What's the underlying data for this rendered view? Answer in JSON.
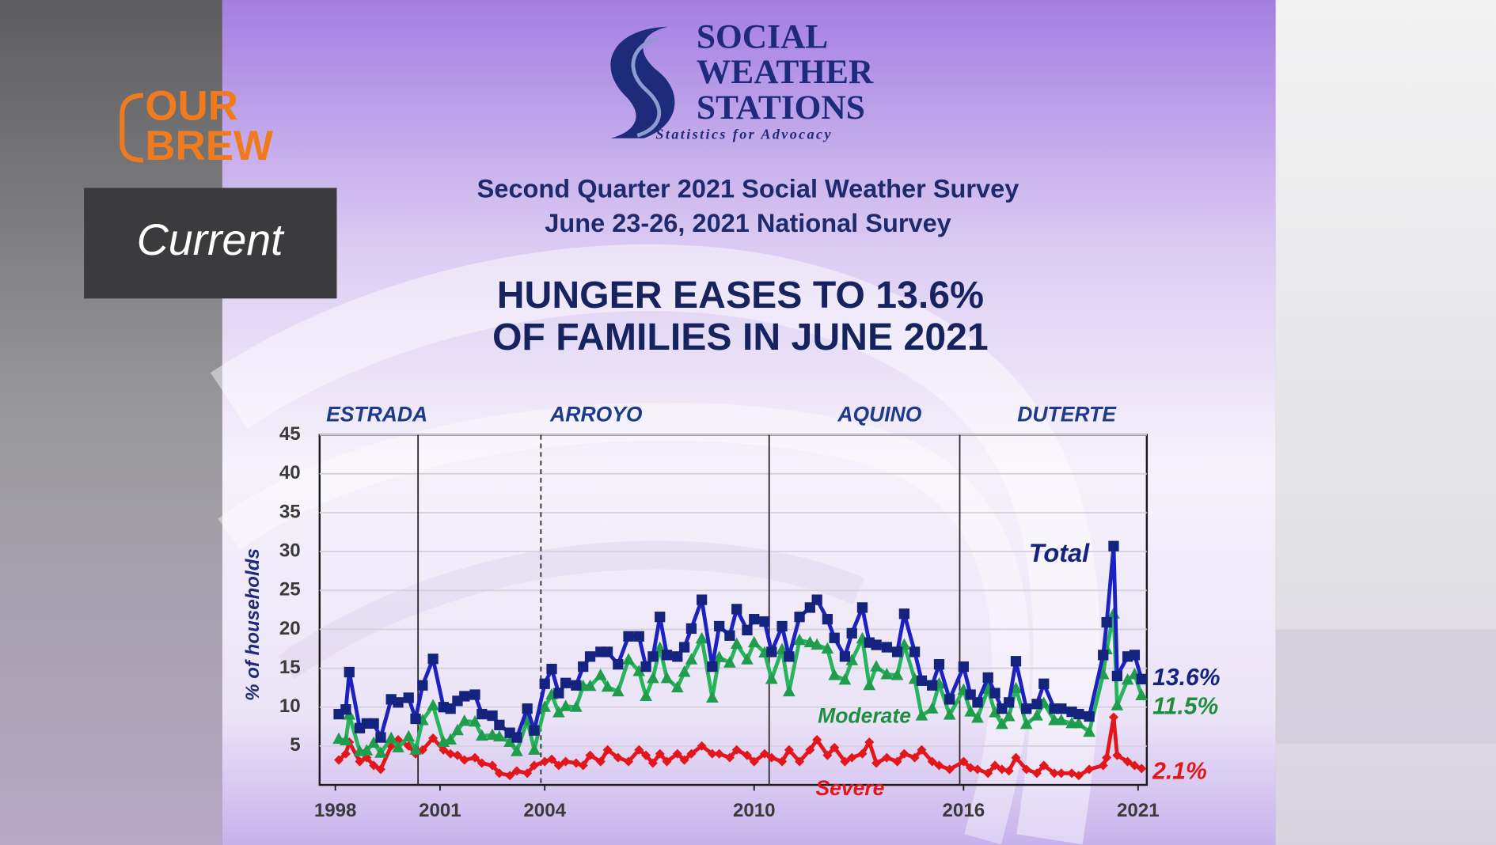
{
  "overlay": {
    "brand": [
      "OUR",
      "BREW"
    ],
    "tag": "Current"
  },
  "logo": {
    "name": [
      "SOCIAL",
      "WEATHER",
      "STATIONS"
    ],
    "tagline": "Statistics for Advocacy"
  },
  "chart_data": {
    "type": "line",
    "subtitle": [
      "Second Quarter 2021 Social Weather Survey",
      "June 23-26, 2021 National Survey"
    ],
    "title": [
      "HUNGER EASES TO 13.6%",
      "OF FAMILIES IN JUNE 2021"
    ],
    "y_label": "% of households",
    "xlim": [
      1997.55,
      2021.25
    ],
    "xticks": [
      1998,
      2001,
      2004,
      2010,
      2016,
      2021
    ],
    "ylim": [
      0,
      45
    ],
    "yticks": [
      5,
      10,
      15,
      20,
      25,
      30,
      35,
      40,
      45
    ],
    "grid": true,
    "eras": [
      "ESTRADA",
      "ARROYO",
      "AQUINO",
      "DUTERTE"
    ],
    "era_lines": [
      {
        "x": 2000.37,
        "dashed": false
      },
      {
        "x": 2003.89,
        "dashed": true
      },
      {
        "x": 2010.43,
        "dashed": false
      },
      {
        "x": 2015.89,
        "dashed": false
      }
    ],
    "x": [
      1998.1,
      1998.3,
      1998.4,
      1998.7,
      1998.9,
      1999.1,
      1999.3,
      1999.6,
      1999.8,
      2000.1,
      2000.3,
      2000.5,
      2000.8,
      2001.1,
      2001.3,
      2001.5,
      2001.7,
      2002.0,
      2002.2,
      2002.5,
      2002.7,
      2003.0,
      2003.2,
      2003.5,
      2003.7,
      2004.0,
      2004.2,
      2004.4,
      2004.6,
      2004.9,
      2005.1,
      2005.3,
      2005.6,
      2005.8,
      2006.1,
      2006.4,
      2006.7,
      2006.9,
      2007.1,
      2007.3,
      2007.5,
      2007.8,
      2008.0,
      2008.2,
      2008.5,
      2008.8,
      2009.0,
      2009.3,
      2009.5,
      2009.8,
      2010.0,
      2010.3,
      2010.5,
      2010.8,
      2011.0,
      2011.3,
      2011.6,
      2011.8,
      2012.1,
      2012.3,
      2012.6,
      2012.8,
      2013.1,
      2013.3,
      2013.5,
      2013.8,
      2014.1,
      2014.3,
      2014.6,
      2014.8,
      2015.1,
      2015.3,
      2015.6,
      2016.0,
      2016.2,
      2016.4,
      2016.7,
      2016.9,
      2017.1,
      2017.3,
      2017.5,
      2017.8,
      2018.1,
      2018.3,
      2018.6,
      2018.8,
      2019.1,
      2019.3,
      2019.6,
      2020.0,
      2020.1,
      2020.3,
      2020.4,
      2020.7,
      2020.9,
      2021.1
    ],
    "series": [
      {
        "name": "Total",
        "color": "#1c22c0",
        "marker": "square",
        "marker_color": "#14237e",
        "values": [
          9.1,
          9.7,
          14.5,
          7.3,
          7.9,
          7.9,
          6.1,
          11,
          10.6,
          11.2,
          8.5,
          12.8,
          16.2,
          10,
          9.8,
          10.8,
          11.4,
          11.6,
          9.1,
          8.9,
          7.7,
          6.7,
          6.1,
          9.8,
          7,
          13,
          14.9,
          11.8,
          13.1,
          12.8,
          15.2,
          16.5,
          17.1,
          17.1,
          15.5,
          19.1,
          19.1,
          15.2,
          16.5,
          21.6,
          16.7,
          16.5,
          17.7,
          20.1,
          23.8,
          15.2,
          20.4,
          19.2,
          22.6,
          19.9,
          21.3,
          21,
          17.1,
          20.4,
          16.5,
          21.6,
          22.8,
          23.8,
          21.3,
          18.9,
          16.5,
          19.5,
          22.8,
          18.3,
          18,
          17.7,
          17.1,
          22,
          17.1,
          13.4,
          12.8,
          15.5,
          11,
          15.2,
          11.6,
          10.6,
          13.8,
          11.8,
          9.8,
          10.6,
          15.9,
          9.8,
          10.4,
          13,
          9.8,
          9.8,
          9.4,
          9.1,
          8.8,
          16.7,
          20.9,
          30.7,
          14,
          16.5,
          16.7,
          13.6
        ],
        "value_labels": {
          "95": "13.6%"
        }
      },
      {
        "name": "Moderate",
        "color": "#27b45c",
        "marker": "triangle",
        "marker_color": "#1f9d4c",
        "values": [
          5.9,
          5.7,
          9,
          4.3,
          4.4,
          5.4,
          4.1,
          6,
          4.8,
          6.2,
          4.5,
          8.3,
          10.2,
          5.5,
          5.8,
          7,
          8.2,
          8.1,
          6.3,
          6.4,
          6.2,
          5.5,
          4.3,
          8.3,
          4.5,
          10,
          11.6,
          9.3,
          10.1,
          10,
          12.7,
          12.7,
          14.1,
          12.6,
          12,
          16.1,
          14.6,
          11.4,
          13.7,
          17.6,
          13.7,
          12.5,
          14.5,
          16.1,
          18.8,
          11.2,
          16.4,
          15.7,
          18.1,
          16.1,
          18.3,
          17,
          13.6,
          17.4,
          12,
          18.6,
          18.3,
          18,
          17.5,
          14.1,
          13.5,
          16,
          18.8,
          12.8,
          15.2,
          14.2,
          14.1,
          18,
          13.6,
          8.9,
          9.8,
          13,
          9,
          12.2,
          9.4,
          8.6,
          12.3,
          9.3,
          7.8,
          8.8,
          12.4,
          7.8,
          8.9,
          10.5,
          8.3,
          8.3,
          7.9,
          7.9,
          6.8,
          14.2,
          17.4,
          22,
          10.2,
          13.5,
          14.2,
          11.5
        ],
        "value_labels": {
          "95": "11.5%"
        }
      },
      {
        "name": "Severe",
        "color": "#e3161c",
        "marker": "diamond",
        "marker_color": "#e3161c",
        "values": [
          3.2,
          4,
          5.5,
          3,
          3.5,
          2.5,
          2,
          5,
          5.8,
          5,
          4,
          4.5,
          6,
          4.5,
          4,
          3.8,
          3.2,
          3.5,
          2.8,
          2.5,
          1.5,
          1.2,
          1.8,
          1.5,
          2.5,
          3,
          3.3,
          2.5,
          3,
          2.8,
          2.5,
          3.8,
          3,
          4.5,
          3.5,
          3,
          4.5,
          3.8,
          2.8,
          4,
          3,
          4,
          3.2,
          4,
          5,
          4,
          4,
          3.5,
          4.5,
          3.8,
          3,
          4,
          3.5,
          3,
          4.5,
          3,
          4.5,
          5.8,
          3.8,
          4.8,
          3,
          3.5,
          4,
          5.5,
          2.8,
          3.5,
          3,
          4,
          3.5,
          4.5,
          3,
          2.5,
          2,
          3,
          2.2,
          2,
          1.5,
          2.5,
          2,
          1.8,
          3.5,
          2,
          1.5,
          2.5,
          1.5,
          1.5,
          1.5,
          1.2,
          2,
          2.5,
          3.5,
          8.7,
          3.8,
          3,
          2.5,
          2.1
        ],
        "value_labels": {
          "95": "2.1%"
        }
      }
    ]
  }
}
